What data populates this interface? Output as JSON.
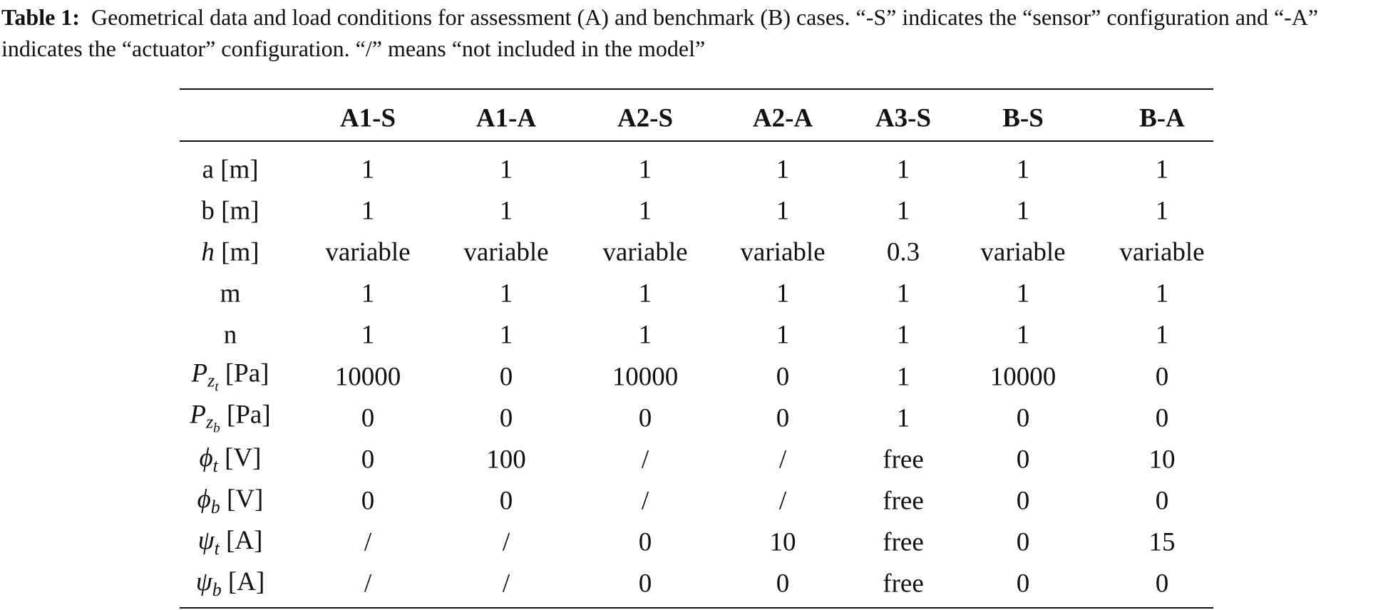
{
  "caption": {
    "label": "Table 1:",
    "text": "Geometrical data and load conditions for assessment (A) and benchmark (B) cases. “-S” indicates the “sensor” configuration and “-A” indicates the “actuator” configuration. “/” means “not included in the model”"
  },
  "table": {
    "columns": [
      "A1-S",
      "A1-A",
      "A2-S",
      "A2-A",
      "A3-S",
      "B-S",
      "B-A"
    ],
    "rows": [
      {
        "label": {
          "text": "a [m]"
        },
        "cells": [
          "1",
          "1",
          "1",
          "1",
          "1",
          "1",
          "1"
        ]
      },
      {
        "label": {
          "text": "b [m]"
        },
        "cells": [
          "1",
          "1",
          "1",
          "1",
          "1",
          "1",
          "1"
        ]
      },
      {
        "label": {
          "symbol": "h",
          "unit": "[m]"
        },
        "cells": [
          "variable",
          "variable",
          "variable",
          "variable",
          "0.3",
          "variable",
          "variable"
        ]
      },
      {
        "label": {
          "text": "m"
        },
        "cells": [
          "1",
          "1",
          "1",
          "1",
          "1",
          "1",
          "1"
        ]
      },
      {
        "label": {
          "text": "n"
        },
        "cells": [
          "1",
          "1",
          "1",
          "1",
          "1",
          "1",
          "1"
        ]
      },
      {
        "label": {
          "symbol": "P",
          "sub": "z",
          "subsub": "t",
          "unit": "[Pa]"
        },
        "cells": [
          "10000",
          "0",
          "10000",
          "0",
          "1",
          "10000",
          "0"
        ]
      },
      {
        "label": {
          "symbol": "P",
          "sub": "z",
          "subsub": "b",
          "unit": "[Pa]"
        },
        "cells": [
          "0",
          "0",
          "0",
          "0",
          "1",
          "0",
          "0"
        ]
      },
      {
        "label": {
          "symbol": "ϕ",
          "sub": "t",
          "unit": "[V]"
        },
        "cells": [
          "0",
          "100",
          "/",
          "/",
          "free",
          "0",
          "10"
        ]
      },
      {
        "label": {
          "symbol": "ϕ",
          "sub": "b",
          "unit": "[V]"
        },
        "cells": [
          "0",
          "0",
          "/",
          "/",
          "free",
          "0",
          "0"
        ]
      },
      {
        "label": {
          "symbol": "ψ",
          "sub": "t",
          "unit": "[A]"
        },
        "cells": [
          "/",
          "/",
          "0",
          "10",
          "free",
          "0",
          "15"
        ]
      },
      {
        "label": {
          "symbol": "ψ",
          "sub": "b",
          "unit": "[A]"
        },
        "cells": [
          "/",
          "/",
          "0",
          "0",
          "free",
          "0",
          "0"
        ]
      }
    ]
  }
}
